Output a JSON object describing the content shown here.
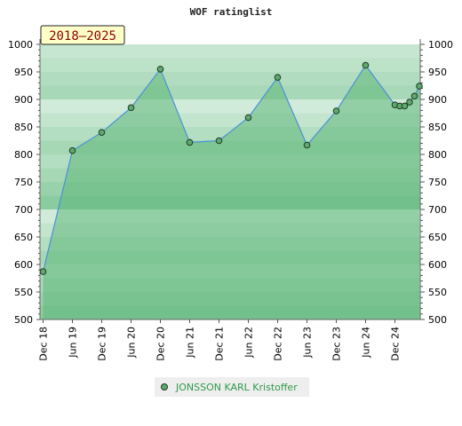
{
  "chart_data": {
    "type": "area",
    "title": "WOF ratinglist",
    "range_label": "2018–2025",
    "ylim": [
      500,
      1000
    ],
    "y_ticks": [
      500,
      550,
      600,
      650,
      700,
      750,
      800,
      850,
      900,
      950,
      1000
    ],
    "x_tick_labels": [
      "Dec 18",
      "Jun 19",
      "Dec 19",
      "Jun 20",
      "Dec 20",
      "Jun 21",
      "Dec 21",
      "Jun 22",
      "Dec 22",
      "Jun 23",
      "Dec 23",
      "Jun 24",
      "Dec 24"
    ],
    "series": [
      {
        "name": "JONSSON KARL Kristoffer",
        "points": [
          {
            "period": "2018-12",
            "value": 587
          },
          {
            "period": "2019-06",
            "value": 807
          },
          {
            "period": "2019-12",
            "value": 840
          },
          {
            "period": "2020-06",
            "value": 885
          },
          {
            "period": "2020-12",
            "value": 955
          },
          {
            "period": "2021-06",
            "value": 822
          },
          {
            "period": "2021-12",
            "value": 825
          },
          {
            "period": "2022-06",
            "value": 867
          },
          {
            "period": "2022-12",
            "value": 940
          },
          {
            "period": "2023-06",
            "value": 817
          },
          {
            "period": "2023-12",
            "value": 879
          },
          {
            "period": "2024-06",
            "value": 962
          },
          {
            "period": "2024-12",
            "value": 890
          },
          {
            "period": "2025-01",
            "value": 888
          },
          {
            "period": "2025-02",
            "value": 888
          },
          {
            "period": "2025-03",
            "value": 895
          },
          {
            "period": "2025-04",
            "value": 906
          },
          {
            "period": "2025-05",
            "value": 924
          }
        ]
      }
    ]
  },
  "colors": {
    "line": "#4a90d9",
    "fill": "#5fb87a",
    "marker_fill": "#5fa86e",
    "marker_stroke": "#1f3a24",
    "legend_text": "#2e9a4a",
    "legend_bg": "#eeeeee",
    "range_box_bg": "#ffffc8",
    "band_colors": [
      "#7bc493",
      "#8acb9f",
      "#98d1ab",
      "#a6d8b6",
      "#b4dec2",
      "#c3e5ce",
      "#d1ebda",
      "#dff2e5",
      "#eef8f1",
      "#f8fcf9"
    ]
  }
}
